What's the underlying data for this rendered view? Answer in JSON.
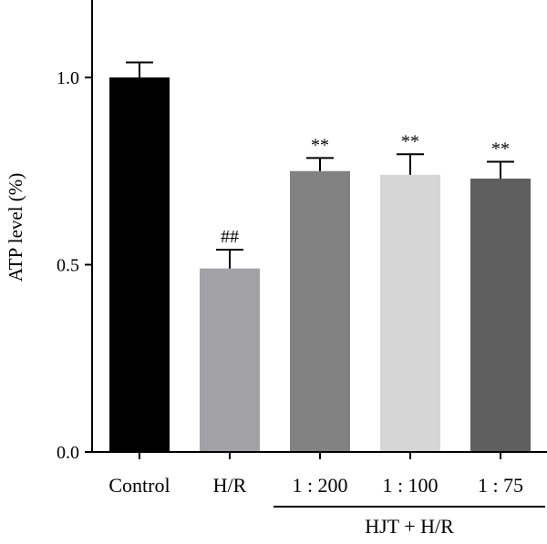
{
  "chart_data": {
    "type": "bar",
    "title": "",
    "xlabel": "",
    "ylabel": "ATP level (%)",
    "ylim": [
      0,
      1.2
    ],
    "yticks": [
      "0.0",
      "0.5",
      "1.0"
    ],
    "grid": false,
    "categories": [
      "Control",
      "H/R",
      "1 : 200",
      "1 : 100",
      "1 : 75"
    ],
    "values": [
      1.0,
      0.49,
      0.75,
      0.74,
      0.73
    ],
    "errors": [
      0.04,
      0.05,
      0.035,
      0.055,
      0.045
    ],
    "annotations": [
      "",
      "##",
      "**",
      "**",
      "**"
    ],
    "colors": [
      "#000000",
      "#a2a2a6",
      "#828282",
      "#d6d6d6",
      "#5f5f5f"
    ],
    "group_label": "HJT + H/R",
    "group_categories": [
      "1 : 200",
      "1 : 100",
      "1 : 75"
    ]
  }
}
